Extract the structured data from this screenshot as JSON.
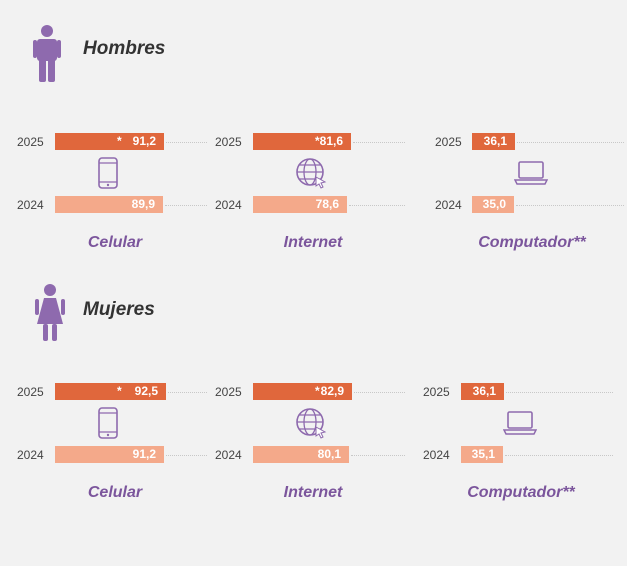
{
  "colors": {
    "bar_2025": "#e0673c",
    "bar_2024": "#f4a98a",
    "accent_purple": "#7b559c",
    "title_text": "#333333",
    "icon_purple": "#8e6aae"
  },
  "icons": {
    "man": "man-icon",
    "woman": "woman-icon",
    "celular": "mobile-phone-icon",
    "internet": "globe-icon",
    "computador": "laptop-icon"
  },
  "chart_data": {
    "type": "bar",
    "orientation": "horizontal",
    "xlim": [
      0,
      100
    ],
    "years": [
      "2025",
      "2024"
    ],
    "categories": [
      "Celular",
      "Internet",
      "Computador**"
    ],
    "groups": [
      {
        "title": "Hombres",
        "metrics": [
          {
            "label": "Celular",
            "values": {
              "2025": 91.2,
              "2024": 89.9
            },
            "text_2025": "91,2",
            "text_2024": "89,9",
            "marker_2025": "*"
          },
          {
            "label": "Internet",
            "values": {
              "2025": 81.6,
              "2024": 78.6
            },
            "text_2025": "81,6",
            "text_2024": "78,6",
            "marker_2025": "*"
          },
          {
            "label": "Computador**",
            "values": {
              "2025": 36.1,
              "2024": 35.0
            },
            "text_2025": "36,1",
            "text_2024": "35,0",
            "marker_2025": ""
          }
        ]
      },
      {
        "title": "Mujeres",
        "metrics": [
          {
            "label": "Celular",
            "values": {
              "2025": 92.5,
              "2024": 91.2
            },
            "text_2025": "92,5",
            "text_2024": "91,2",
            "marker_2025": "*"
          },
          {
            "label": "Internet",
            "values": {
              "2025": 82.9,
              "2024": 80.1
            },
            "text_2025": "82,9",
            "text_2024": "80,1",
            "marker_2025": "*"
          },
          {
            "label": "Computador**",
            "values": {
              "2025": 36.1,
              "2024": 35.1
            },
            "text_2025": "36,1",
            "text_2024": "35,1",
            "marker_2025": ""
          }
        ]
      }
    ]
  }
}
